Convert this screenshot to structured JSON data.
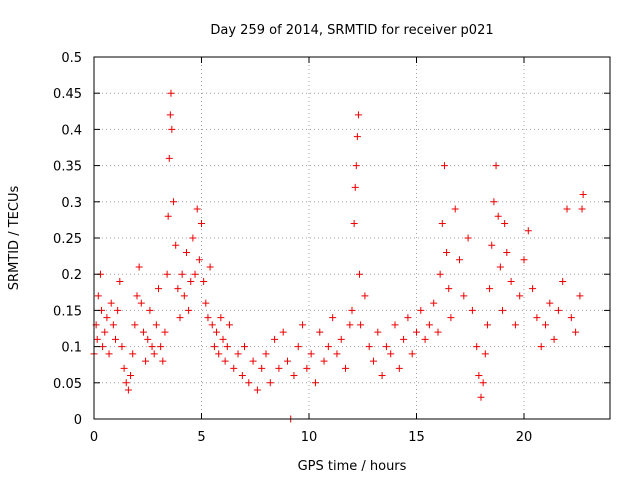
{
  "chart_data": {
    "type": "scatter",
    "title": "Day 259 of 2014, SRMTID for receiver p021",
    "xlabel": "GPS time / hours",
    "ylabel": "SRMTID / TECUs",
    "xlim": [
      0,
      24
    ],
    "ylim": [
      0,
      0.5
    ],
    "xticks": [
      0,
      5,
      10,
      15,
      20
    ],
    "yticks": [
      0,
      0.05,
      0.1,
      0.15,
      0.2,
      0.25,
      0.3,
      0.35,
      0.4,
      0.45,
      0.5
    ],
    "xtick_labels": [
      "0",
      "5",
      "10",
      "15",
      "20"
    ],
    "ytick_labels": [
      "0",
      "0.05",
      "0.1",
      "0.15",
      "0.2",
      "0.25",
      "0.3",
      "0.35",
      "0.4",
      "0.45",
      "0.5"
    ],
    "grid": true,
    "marker": "plus",
    "color": "#ee0000",
    "series": [
      {
        "name": "SRMTID",
        "points": [
          [
            0.0,
            0.09
          ],
          [
            0.1,
            0.13
          ],
          [
            0.15,
            0.11
          ],
          [
            0.2,
            0.17
          ],
          [
            0.3,
            0.2
          ],
          [
            0.35,
            0.15
          ],
          [
            0.4,
            0.1
          ],
          [
            0.5,
            0.12
          ],
          [
            0.6,
            0.14
          ],
          [
            0.7,
            0.09
          ],
          [
            0.8,
            0.16
          ],
          [
            0.9,
            0.13
          ],
          [
            1.0,
            0.11
          ],
          [
            1.1,
            0.15
          ],
          [
            1.2,
            0.19
          ],
          [
            1.3,
            0.1
          ],
          [
            1.4,
            0.07
          ],
          [
            1.5,
            0.05
          ],
          [
            1.6,
            0.04
          ],
          [
            1.7,
            0.06
          ],
          [
            1.8,
            0.09
          ],
          [
            1.9,
            0.13
          ],
          [
            2.0,
            0.17
          ],
          [
            2.1,
            0.21
          ],
          [
            2.2,
            0.16
          ],
          [
            2.3,
            0.12
          ],
          [
            2.4,
            0.08
          ],
          [
            2.5,
            0.11
          ],
          [
            2.6,
            0.15
          ],
          [
            2.7,
            0.1
          ],
          [
            2.8,
            0.09
          ],
          [
            2.9,
            0.13
          ],
          [
            3.0,
            0.18
          ],
          [
            3.1,
            0.1
          ],
          [
            3.2,
            0.08
          ],
          [
            3.3,
            0.12
          ],
          [
            3.4,
            0.2
          ],
          [
            3.45,
            0.28
          ],
          [
            3.5,
            0.36
          ],
          [
            3.55,
            0.42
          ],
          [
            3.58,
            0.45
          ],
          [
            3.62,
            0.4
          ],
          [
            3.7,
            0.3
          ],
          [
            3.8,
            0.24
          ],
          [
            3.9,
            0.18
          ],
          [
            4.0,
            0.14
          ],
          [
            4.1,
            0.2
          ],
          [
            4.2,
            0.17
          ],
          [
            4.3,
            0.23
          ],
          [
            4.4,
            0.15
          ],
          [
            4.5,
            0.19
          ],
          [
            4.6,
            0.25
          ],
          [
            4.7,
            0.2
          ],
          [
            4.8,
            0.29
          ],
          [
            4.9,
            0.22
          ],
          [
            5.0,
            0.27
          ],
          [
            5.1,
            0.19
          ],
          [
            5.2,
            0.16
          ],
          [
            5.3,
            0.14
          ],
          [
            5.4,
            0.21
          ],
          [
            5.5,
            0.13
          ],
          [
            5.6,
            0.1
          ],
          [
            5.7,
            0.12
          ],
          [
            5.8,
            0.09
          ],
          [
            5.9,
            0.14
          ],
          [
            6.0,
            0.11
          ],
          [
            6.1,
            0.08
          ],
          [
            6.2,
            0.1
          ],
          [
            6.3,
            0.13
          ],
          [
            6.5,
            0.07
          ],
          [
            6.7,
            0.09
          ],
          [
            6.9,
            0.06
          ],
          [
            7.0,
            0.1
          ],
          [
            7.2,
            0.05
          ],
          [
            7.4,
            0.08
          ],
          [
            7.6,
            0.04
          ],
          [
            7.8,
            0.07
          ],
          [
            8.0,
            0.09
          ],
          [
            8.2,
            0.05
          ],
          [
            8.4,
            0.11
          ],
          [
            8.6,
            0.07
          ],
          [
            8.8,
            0.12
          ],
          [
            9.0,
            0.08
          ],
          [
            9.15,
            0.0
          ],
          [
            9.3,
            0.06
          ],
          [
            9.5,
            0.1
          ],
          [
            9.7,
            0.13
          ],
          [
            9.9,
            0.07
          ],
          [
            10.1,
            0.09
          ],
          [
            10.3,
            0.05
          ],
          [
            10.5,
            0.12
          ],
          [
            10.7,
            0.08
          ],
          [
            10.9,
            0.1
          ],
          [
            11.1,
            0.14
          ],
          [
            11.3,
            0.09
          ],
          [
            11.5,
            0.11
          ],
          [
            11.7,
            0.07
          ],
          [
            11.9,
            0.13
          ],
          [
            12.0,
            0.15
          ],
          [
            12.1,
            0.27
          ],
          [
            12.15,
            0.32
          ],
          [
            12.2,
            0.35
          ],
          [
            12.25,
            0.39
          ],
          [
            12.3,
            0.42
          ],
          [
            12.35,
            0.2
          ],
          [
            12.4,
            0.13
          ],
          [
            12.6,
            0.17
          ],
          [
            12.8,
            0.1
          ],
          [
            13.0,
            0.08
          ],
          [
            13.2,
            0.12
          ],
          [
            13.4,
            0.06
          ],
          [
            13.6,
            0.1
          ],
          [
            13.8,
            0.09
          ],
          [
            14.0,
            0.13
          ],
          [
            14.2,
            0.07
          ],
          [
            14.4,
            0.11
          ],
          [
            14.6,
            0.14
          ],
          [
            14.8,
            0.09
          ],
          [
            15.0,
            0.12
          ],
          [
            15.2,
            0.15
          ],
          [
            15.4,
            0.11
          ],
          [
            15.6,
            0.13
          ],
          [
            15.8,
            0.16
          ],
          [
            16.0,
            0.12
          ],
          [
            16.1,
            0.2
          ],
          [
            16.2,
            0.27
          ],
          [
            16.3,
            0.35
          ],
          [
            16.4,
            0.23
          ],
          [
            16.5,
            0.18
          ],
          [
            16.6,
            0.14
          ],
          [
            16.8,
            0.29
          ],
          [
            17.0,
            0.22
          ],
          [
            17.2,
            0.17
          ],
          [
            17.4,
            0.25
          ],
          [
            17.6,
            0.15
          ],
          [
            17.8,
            0.1
          ],
          [
            17.9,
            0.06
          ],
          [
            18.0,
            0.03
          ],
          [
            18.1,
            0.05
          ],
          [
            18.2,
            0.09
          ],
          [
            18.3,
            0.13
          ],
          [
            18.4,
            0.18
          ],
          [
            18.5,
            0.24
          ],
          [
            18.6,
            0.3
          ],
          [
            18.7,
            0.35
          ],
          [
            18.8,
            0.28
          ],
          [
            18.9,
            0.21
          ],
          [
            19.0,
            0.15
          ],
          [
            19.1,
            0.27
          ],
          [
            19.2,
            0.23
          ],
          [
            19.4,
            0.19
          ],
          [
            19.6,
            0.13
          ],
          [
            19.8,
            0.17
          ],
          [
            20.0,
            0.22
          ],
          [
            20.2,
            0.26
          ],
          [
            20.4,
            0.18
          ],
          [
            20.6,
            0.14
          ],
          [
            20.8,
            0.1
          ],
          [
            21.0,
            0.13
          ],
          [
            21.2,
            0.16
          ],
          [
            21.4,
            0.11
          ],
          [
            21.6,
            0.15
          ],
          [
            21.8,
            0.19
          ],
          [
            22.0,
            0.29
          ],
          [
            22.2,
            0.14
          ],
          [
            22.4,
            0.12
          ],
          [
            22.6,
            0.17
          ],
          [
            22.7,
            0.29
          ],
          [
            22.75,
            0.31
          ]
        ]
      }
    ]
  }
}
